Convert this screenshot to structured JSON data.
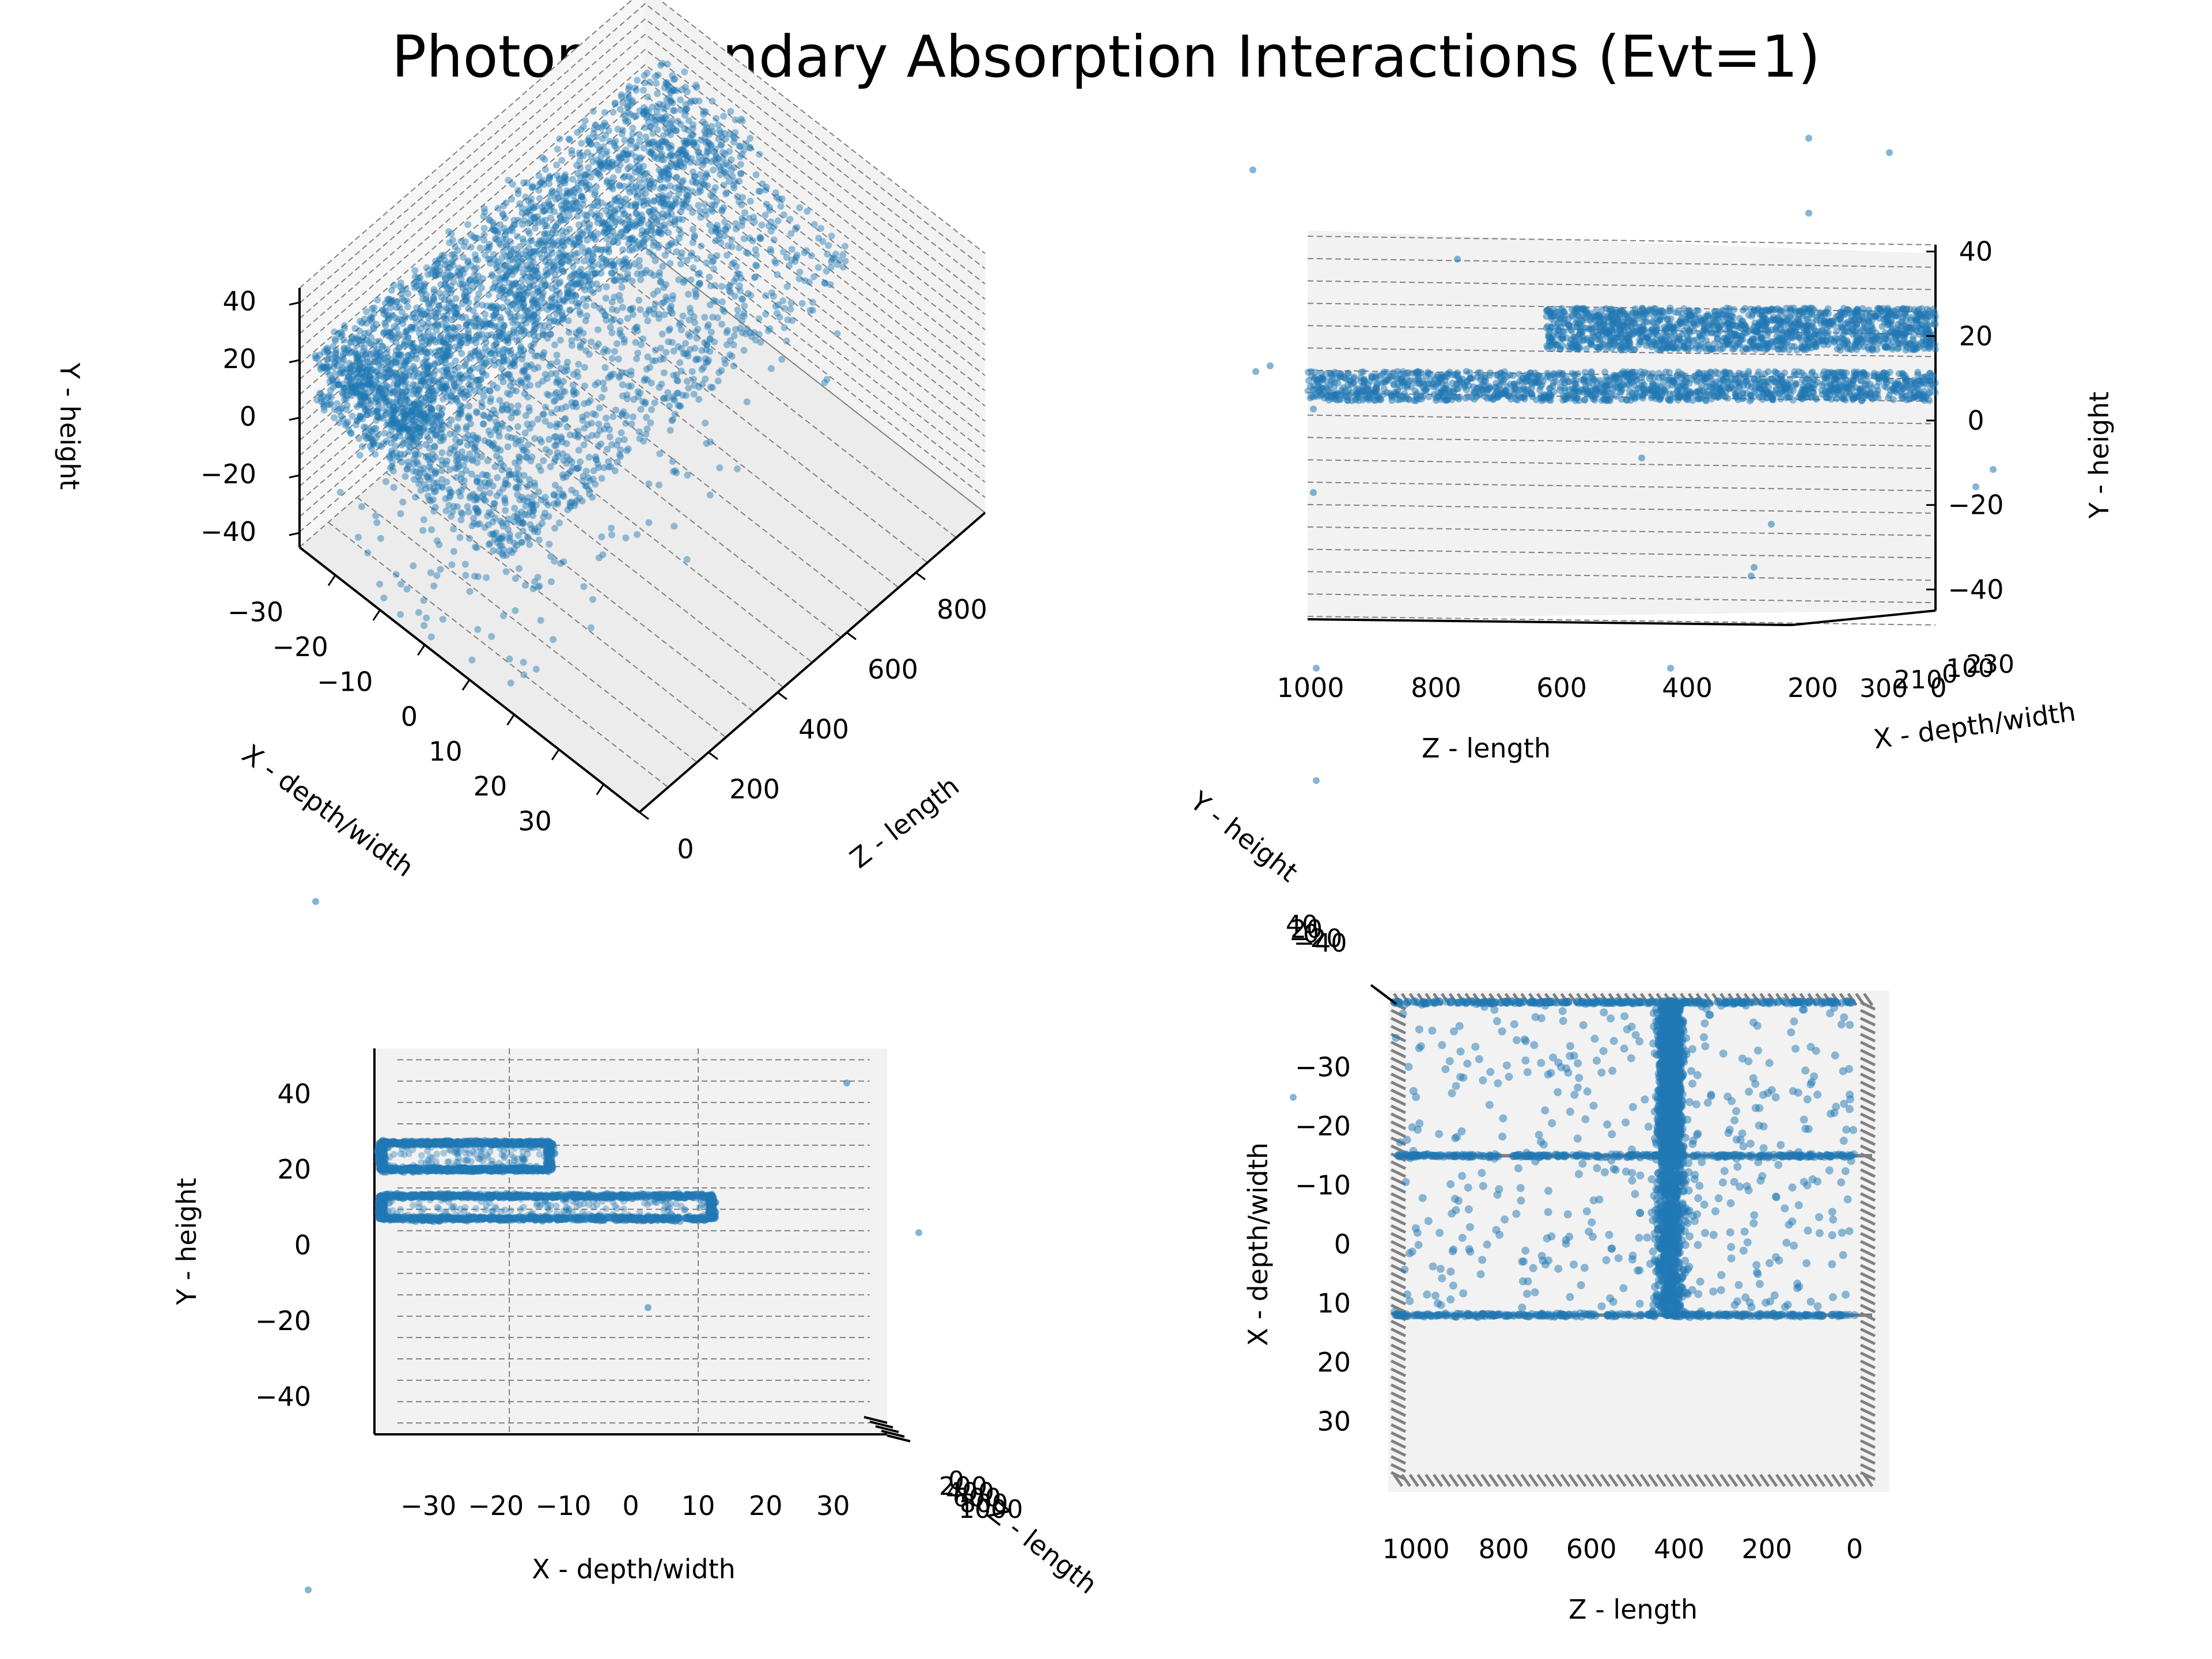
{
  "figure": {
    "title": "Photon Boundary Absorption Interactions (Evt=1)"
  },
  "style": {
    "point_color": "#1f77b4",
    "pane_color": "#f2f2f2",
    "grid_line_color": "#808080",
    "axis_color": "#000000"
  },
  "chart_data": [
    {
      "type": "scatter",
      "view": "3d-perspective",
      "xlabel": "X - depth/width",
      "ylabel": "Y - height",
      "zlabel": "Z - length",
      "x_ticks": [
        "−30",
        "−20",
        "−10",
        "0",
        "10",
        "20",
        "30"
      ],
      "y_ticks": [
        "40",
        "20",
        "0",
        "−20",
        "−40"
      ],
      "z_ticks": [
        "0",
        "200",
        "400",
        "600",
        "800"
      ],
      "xlim": [
        -38,
        38
      ],
      "ylim": [
        -45,
        45
      ],
      "zlim": [
        0,
        1000
      ],
      "grid": true,
      "clusters": [
        {
          "x_range": [
            -35,
            -12
          ],
          "y_range": [
            18,
            28
          ],
          "z_range": [
            0,
            1000
          ],
          "n": 1800
        },
        {
          "x_range": [
            -35,
            10
          ],
          "y_range": [
            6,
            13
          ],
          "z_range": [
            0,
            1000
          ],
          "n": 1800
        },
        {
          "x_range": [
            -35,
            10
          ],
          "y_range": [
            -45,
            30
          ],
          "z_range": [
            0,
            1000
          ],
          "n": 450
        }
      ]
    },
    {
      "type": "scatter",
      "view": "side (Z vs Y)",
      "xlabel": "Z - length",
      "ylabel": "Y - height",
      "depth_label": "X - depth/width",
      "x_ticks": [
        "1000",
        "800",
        "600",
        "400",
        "200",
        "0"
      ],
      "y_ticks": [
        "40",
        "20",
        "0",
        "−20",
        "−40"
      ],
      "depth_ticks": [
        "300",
        "210",
        "0",
        "100",
        "230"
      ],
      "xlim": [
        1000,
        0
      ],
      "ylim": [
        -45,
        45
      ],
      "grid": true,
      "bands": [
        {
          "y_range": [
            18,
            28
          ],
          "z_range": [
            0,
            620
          ],
          "n": 1400
        },
        {
          "y_range": [
            6,
            13
          ],
          "z_range": [
            0,
            1000
          ],
          "n": 1400
        }
      ]
    },
    {
      "type": "scatter",
      "view": "front (X vs Y)",
      "xlabel": "X - depth/width",
      "ylabel": "Y - height",
      "depth_label": "Z - length",
      "x_ticks": [
        "−30",
        "−20",
        "−10",
        "0",
        "10",
        "20",
        "30"
      ],
      "y_ticks": [
        "40",
        "20",
        "0",
        "−20",
        "−40"
      ],
      "depth_ticks": [
        "0",
        "200",
        "400",
        "600",
        "800",
        "1000"
      ],
      "xlim": [
        -38,
        38
      ],
      "ylim": [
        -50,
        52
      ],
      "grid": true,
      "outlines": [
        {
          "x_range": [
            -37,
            -12
          ],
          "y_range": [
            20,
            27
          ],
          "n": 900
        },
        {
          "x_range": [
            -37,
            12
          ],
          "y_range": [
            7,
            13
          ],
          "n": 1100
        }
      ]
    },
    {
      "type": "scatter",
      "view": "top (Z vs X)",
      "xlabel": "Z - length",
      "ylabel": "X - depth/width",
      "depth_label": "Y - height",
      "x_ticks": [
        "1000",
        "800",
        "600",
        "400",
        "200",
        "0"
      ],
      "y_ticks": [
        "−30",
        "−20",
        "−10",
        "0",
        "10",
        "20",
        "30"
      ],
      "depth_ticks": [
        "40",
        "20",
        "0",
        "−20",
        "−40"
      ],
      "xlim": [
        1050,
        -40
      ],
      "ylim": [
        -41,
        40
      ],
      "grid": true,
      "regions": [
        {
          "name": "",
          "z_center": 420,
          "z_spread": 45,
          "x_range": [
            -41,
            -15
          ],
          "n": 1600
        },
        {
          "name": "",
          "z_center": 420,
          "z_spread": 60,
          "x_range": [
            -15,
            12
          ],
          "n": 700
        },
        {
          "name": "",
          "z_range": [
            0,
            1050
          ],
          "x_range": [
            -41,
            12
          ],
          "n": 450
        },
        {
          "name": "",
          "z_range": [
            0,
            1050
          ],
          "x_value": -15,
          "n": 300
        },
        {
          "name": "",
          "z_range": [
            0,
            1050
          ],
          "x_value": 12,
          "n": 300
        },
        {
          "name": "",
          "z_range": [
            0,
            1050
          ],
          "x_value": -41,
          "n": 300
        }
      ]
    }
  ]
}
